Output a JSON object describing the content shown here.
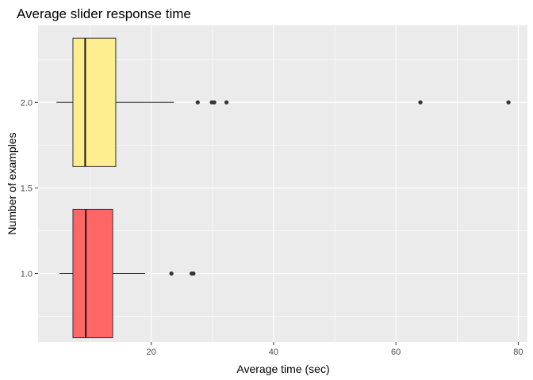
{
  "chart_data": {
    "type": "boxplot",
    "orientation": "horizontal",
    "title": "Average slider response time",
    "xlabel": "Average time (sec)",
    "ylabel": "Number of examples",
    "xlim": [
      1.5,
      81.5
    ],
    "ylim": [
      0.6,
      2.45
    ],
    "x_ticks": [
      20,
      40,
      60,
      80
    ],
    "y_ticks": [
      1.0,
      1.5,
      2.0
    ],
    "y_tick_labels": [
      "1.0",
      "1.5",
      "2.0"
    ],
    "grid": true,
    "background_color": "#EBEBEB",
    "boxes": [
      {
        "y": 1.0,
        "whisker_low": 5.0,
        "q1": 7.2,
        "median": 9.3,
        "q3": 13.7,
        "whisker_high": 19.0,
        "outliers": [
          23.3,
          26.6,
          26.9
        ],
        "fill": "#FF6666"
      },
      {
        "y": 2.0,
        "whisker_low": 4.5,
        "q1": 7.2,
        "median": 9.2,
        "q3": 14.2,
        "whisker_high": 23.7,
        "outliers": [
          27.6,
          29.9,
          30.3,
          32.3,
          64.0,
          78.4
        ],
        "fill": "#FFEE8F"
      }
    ]
  }
}
